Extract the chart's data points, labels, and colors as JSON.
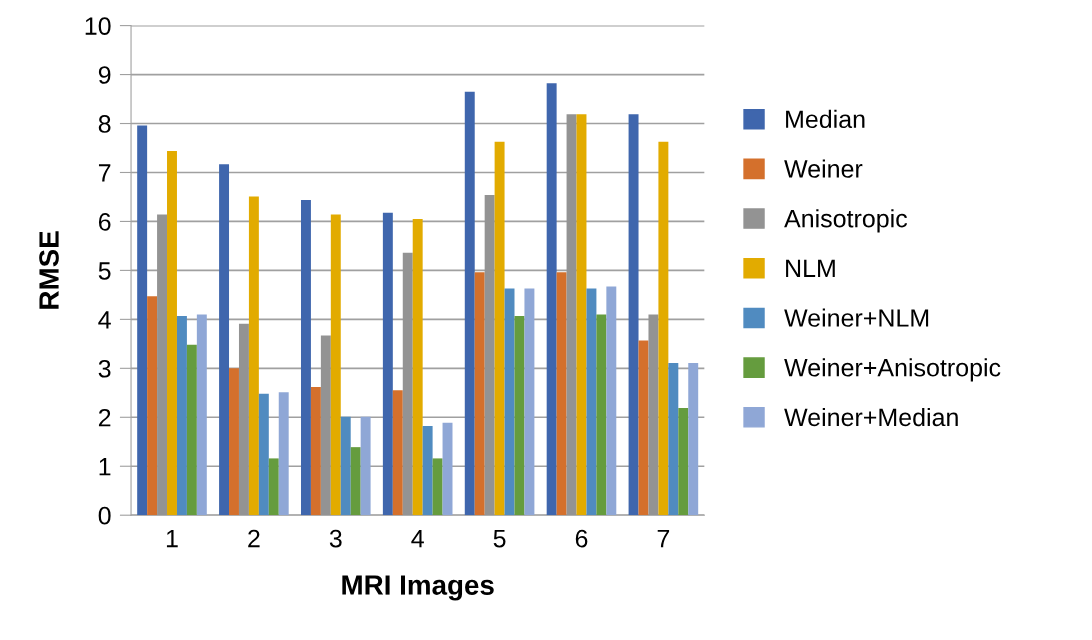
{
  "chart_data": {
    "type": "bar",
    "xlabel": "MRI Images",
    "ylabel": "RMSE",
    "categories": [
      "1",
      "2",
      "3",
      "4",
      "5",
      "6",
      "7"
    ],
    "ylim": [
      0,
      10
    ],
    "yticks": [
      0,
      1,
      2,
      3,
      4,
      5,
      6,
      7,
      8,
      9,
      10
    ],
    "grid": "y",
    "legend": "right",
    "series": [
      {
        "name": "Median",
        "color": "#3f66ad",
        "values": [
          7.96,
          7.17,
          6.44,
          6.18,
          8.65,
          8.82,
          8.19
        ]
      },
      {
        "name": "Weiner",
        "color": "#d4702c",
        "values": [
          4.47,
          3.0,
          2.62,
          2.55,
          4.96,
          4.96,
          3.57
        ]
      },
      {
        "name": "Anisotropic",
        "color": "#939393",
        "values": [
          6.14,
          3.91,
          3.67,
          5.36,
          6.54,
          8.19,
          4.1
        ]
      },
      {
        "name": "NLM",
        "color": "#e2ab00",
        "values": [
          7.44,
          6.51,
          6.14,
          6.05,
          7.63,
          8.19,
          7.63
        ]
      },
      {
        "name": "Weiner+NLM",
        "color": "#508bc0",
        "values": [
          4.07,
          2.48,
          2.01,
          1.82,
          4.63,
          4.63,
          3.11
        ]
      },
      {
        "name": "Weiner+Anisotropic",
        "color": "#659c3e",
        "values": [
          3.48,
          1.16,
          1.39,
          1.16,
          4.07,
          4.1,
          2.19
        ]
      },
      {
        "name": "Weiner+Median",
        "color": "#8fa7d6",
        "values": [
          4.1,
          2.51,
          2.01,
          1.89,
          4.63,
          4.67,
          3.11
        ]
      }
    ]
  }
}
